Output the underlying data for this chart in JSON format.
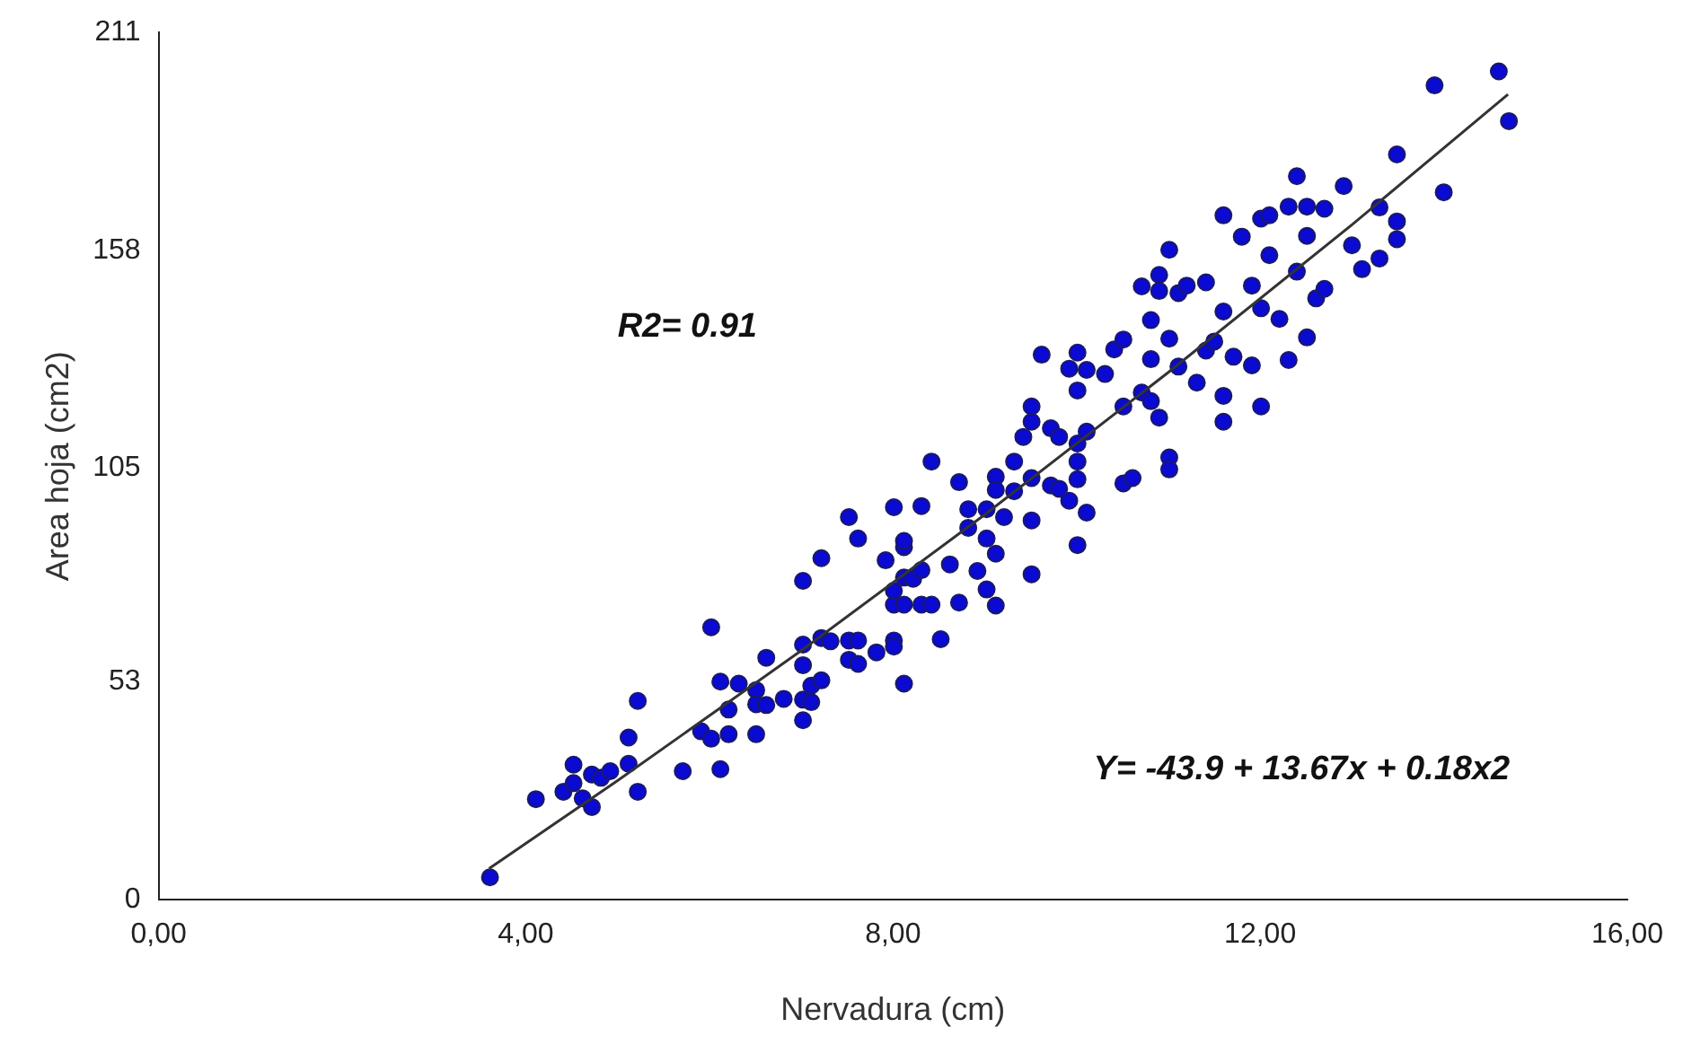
{
  "chart_data": {
    "type": "scatter",
    "xlabel": "Nervadura (cm)",
    "ylabel": "Area hoja (cm2)",
    "xlim": [
      0,
      16
    ],
    "xticks": [
      {
        "value": 0,
        "label": "0,00"
      },
      {
        "value": 4,
        "label": "4,00"
      },
      {
        "value": 8,
        "label": "8,00"
      },
      {
        "value": 12,
        "label": "12,00"
      },
      {
        "value": 16,
        "label": "16,00"
      }
    ],
    "ylim": [
      0,
      211
    ],
    "yticks": [
      0,
      53,
      105,
      158,
      211
    ],
    "grid": false,
    "legend": false,
    "marker": "circle",
    "annotations": [
      "R2= 0.91",
      "Y= -43.9 + 13.67x + 0.18x2"
    ],
    "series": [
      {
        "color": "#0a0ad2",
        "x": [
          3.61,
          4.11,
          4.41,
          4.52,
          4.52,
          4.62,
          4.72,
          4.72,
          4.82,
          4.92,
          5.12,
          5.12,
          5.22,
          5.22,
          5.71,
          5.91,
          6.02,
          6.02,
          6.12,
          6.12,
          6.21,
          6.21,
          6.32,
          6.51,
          6.51,
          6.51,
          6.62,
          6.62,
          6.81,
          7.02,
          7.02,
          7.02,
          7.02,
          7.02,
          7.11,
          7.11,
          7.22,
          7.22,
          7.22,
          7.32,
          7.52,
          7.52,
          7.52,
          7.62,
          7.62,
          7.62,
          7.82,
          8.01,
          8.01,
          8.01,
          7.92,
          8.01,
          8.01,
          8.12,
          8.12,
          8.12,
          8.12,
          8.12,
          8.22,
          8.31,
          8.31,
          8.31,
          8.42,
          8.42,
          8.52,
          8.62,
          8.72,
          8.72,
          8.82,
          8.82,
          8.92,
          9.02,
          9.02,
          9.02,
          9.12,
          9.12,
          9.12,
          9.12,
          9.21,
          9.32,
          9.32,
          9.42,
          9.51,
          9.51,
          9.51,
          9.51,
          9.51,
          9.62,
          9.72,
          9.72,
          9.81,
          9.81,
          9.92,
          9.92,
          10.01,
          10.01,
          10.01,
          10.01,
          10.01,
          10.01,
          10.11,
          10.11,
          10.11,
          10.31,
          10.41,
          10.51,
          10.51,
          10.51,
          10.61,
          10.71,
          10.71,
          10.81,
          10.81,
          10.81,
          10.9,
          10.9,
          10.9,
          11.01,
          11.01,
          11.01,
          11.01,
          11.11,
          11.11,
          11.2,
          11.31,
          11.41,
          11.41,
          11.5,
          11.6,
          11.6,
          11.6,
          11.6,
          11.71,
          11.8,
          11.91,
          11.91,
          12.01,
          12.01,
          12.01,
          12.1,
          12.1,
          12.21,
          12.31,
          12.31,
          12.4,
          12.4,
          12.51,
          12.51,
          12.51,
          12.61,
          12.7,
          12.7,
          12.91,
          13,
          13.11,
          13.3,
          13.3,
          13.49,
          13.49,
          13.49,
          13.9,
          14,
          14.6,
          14.71
        ],
        "values": [
          5.5,
          24.5,
          26.3,
          32.9,
          28.4,
          24.7,
          22.6,
          30.5,
          29.7,
          31.3,
          33.1,
          39.5,
          26.3,
          48.4,
          31.3,
          41,
          39.2,
          66.3,
          31.8,
          53.1,
          40.3,
          46.3,
          52.6,
          40.3,
          51,
          47.6,
          58.9,
          47.4,
          48.9,
          43.7,
          48.7,
          57.1,
          62.1,
          77.6,
          48.1,
          52.1,
          83.1,
          53.4,
          63.7,
          62.9,
          58.4,
          93.1,
          63.1,
          57.4,
          63.1,
          87.9,
          60.2,
          63.1,
          61.6,
          95.5,
          82.6,
          71.8,
          75.2,
          52.6,
          71.8,
          78.4,
          85.8,
          87.3,
          78.1,
          80.2,
          95.8,
          71.8,
          71.8,
          106.6,
          63.4,
          81.6,
          101.6,
          72.3,
          90.5,
          95,
          80,
          87.9,
          95,
          75.5,
          102.9,
          99.7,
          84.2,
          71.6,
          93.1,
          99.4,
          106.6,
          112.6,
          102.6,
          120,
          116.3,
          92.3,
          79.2,
          132.6,
          114.7,
          100.8,
          100,
          112.6,
          97.1,
          129.2,
          133.1,
          86.3,
          102.3,
          106.6,
          123.9,
          111,
          128.9,
          94.2,
          113.9,
          127.9,
          133.9,
          136.3,
          120,
          101.3,
          102.6,
          149.2,
          123.4,
          121.3,
          141,
          131.5,
          152,
          148.1,
          117.3,
          158.1,
          107.6,
          104.7,
          136.5,
          147.6,
          129.7,
          149.4,
          125.8,
          150.2,
          133.6,
          135.8,
          122.6,
          143.1,
          166.5,
          116.3,
          132.1,
          161.3,
          149.4,
          130,
          143.9,
          120,
          165.7,
          166.5,
          156.8,
          141.3,
          168.6,
          131.3,
          152.8,
          176,
          168.6,
          136.8,
          161.5,
          146.3,
          168.1,
          148.6,
          173.6,
          159.2,
          153.4,
          156,
          168.4,
          160.7,
          165,
          181.3,
          198.1,
          172.1,
          201.5,
          189.4
        ]
      },
      {
        "type": "line",
        "color": "#333333",
        "marker": "none",
        "line_style": "solid",
        "x": [
          3.6,
          5,
          7,
          9,
          11,
          13,
          14.7
        ],
        "values": [
          7.6,
          29,
          60.6,
          93.7,
          128.3,
          164.2,
          195.9
        ]
      }
    ]
  }
}
